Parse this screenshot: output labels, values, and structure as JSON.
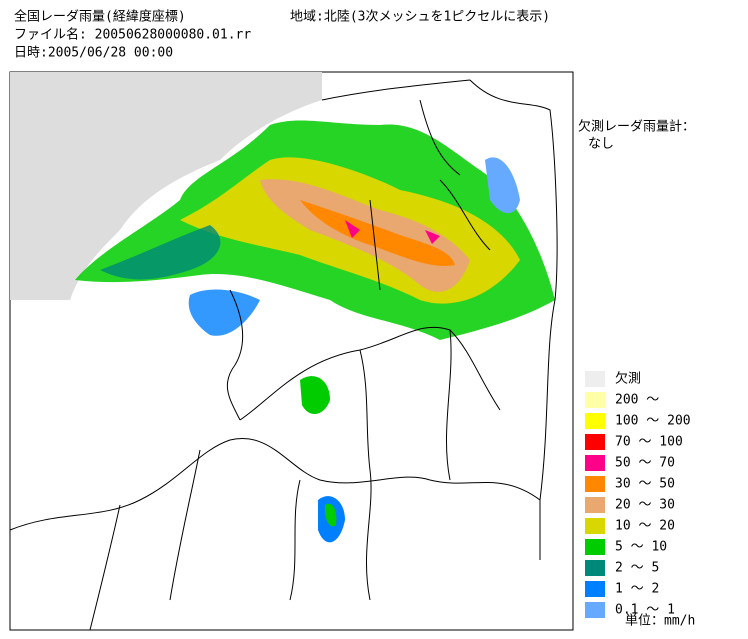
{
  "header": {
    "title": "全国レーダ雨量(経緯度座標)",
    "region": "地域:北陸(3次メッシュを1ピクセルに表示)",
    "file": "ファイル名: 20050628000080.01.rr",
    "date": "日時:2005/06/28 00:00"
  },
  "missing": {
    "label": "欠測レーダ雨量計：",
    "value": "なし"
  },
  "legend": {
    "items": [
      {
        "label": "欠測",
        "color": "#eeeeee"
      },
      {
        "label": "200 ～",
        "color": "#ffffa8"
      },
      {
        "label": "100 ～ 200",
        "color": "#ffff00"
      },
      {
        "label": "70 ～ 100",
        "color": "#ff0000"
      },
      {
        "label": "50 ～ 70",
        "color": "#ff0088"
      },
      {
        "label": "30 ～ 50",
        "color": "#ff8800"
      },
      {
        "label": "20 ～ 30",
        "color": "#e8a870"
      },
      {
        "label": "10 ～ 20",
        "color": "#d8d800"
      },
      {
        "label": "5 ～ 10",
        "color": "#00cc00"
      },
      {
        "label": "2 ～ 5",
        "color": "#008878"
      },
      {
        "label": "1 ～ 2",
        "color": "#0080ff"
      },
      {
        "label": "0.1 ～ 1",
        "color": "#66aaff"
      }
    ],
    "unit": "単位：mm/h"
  }
}
